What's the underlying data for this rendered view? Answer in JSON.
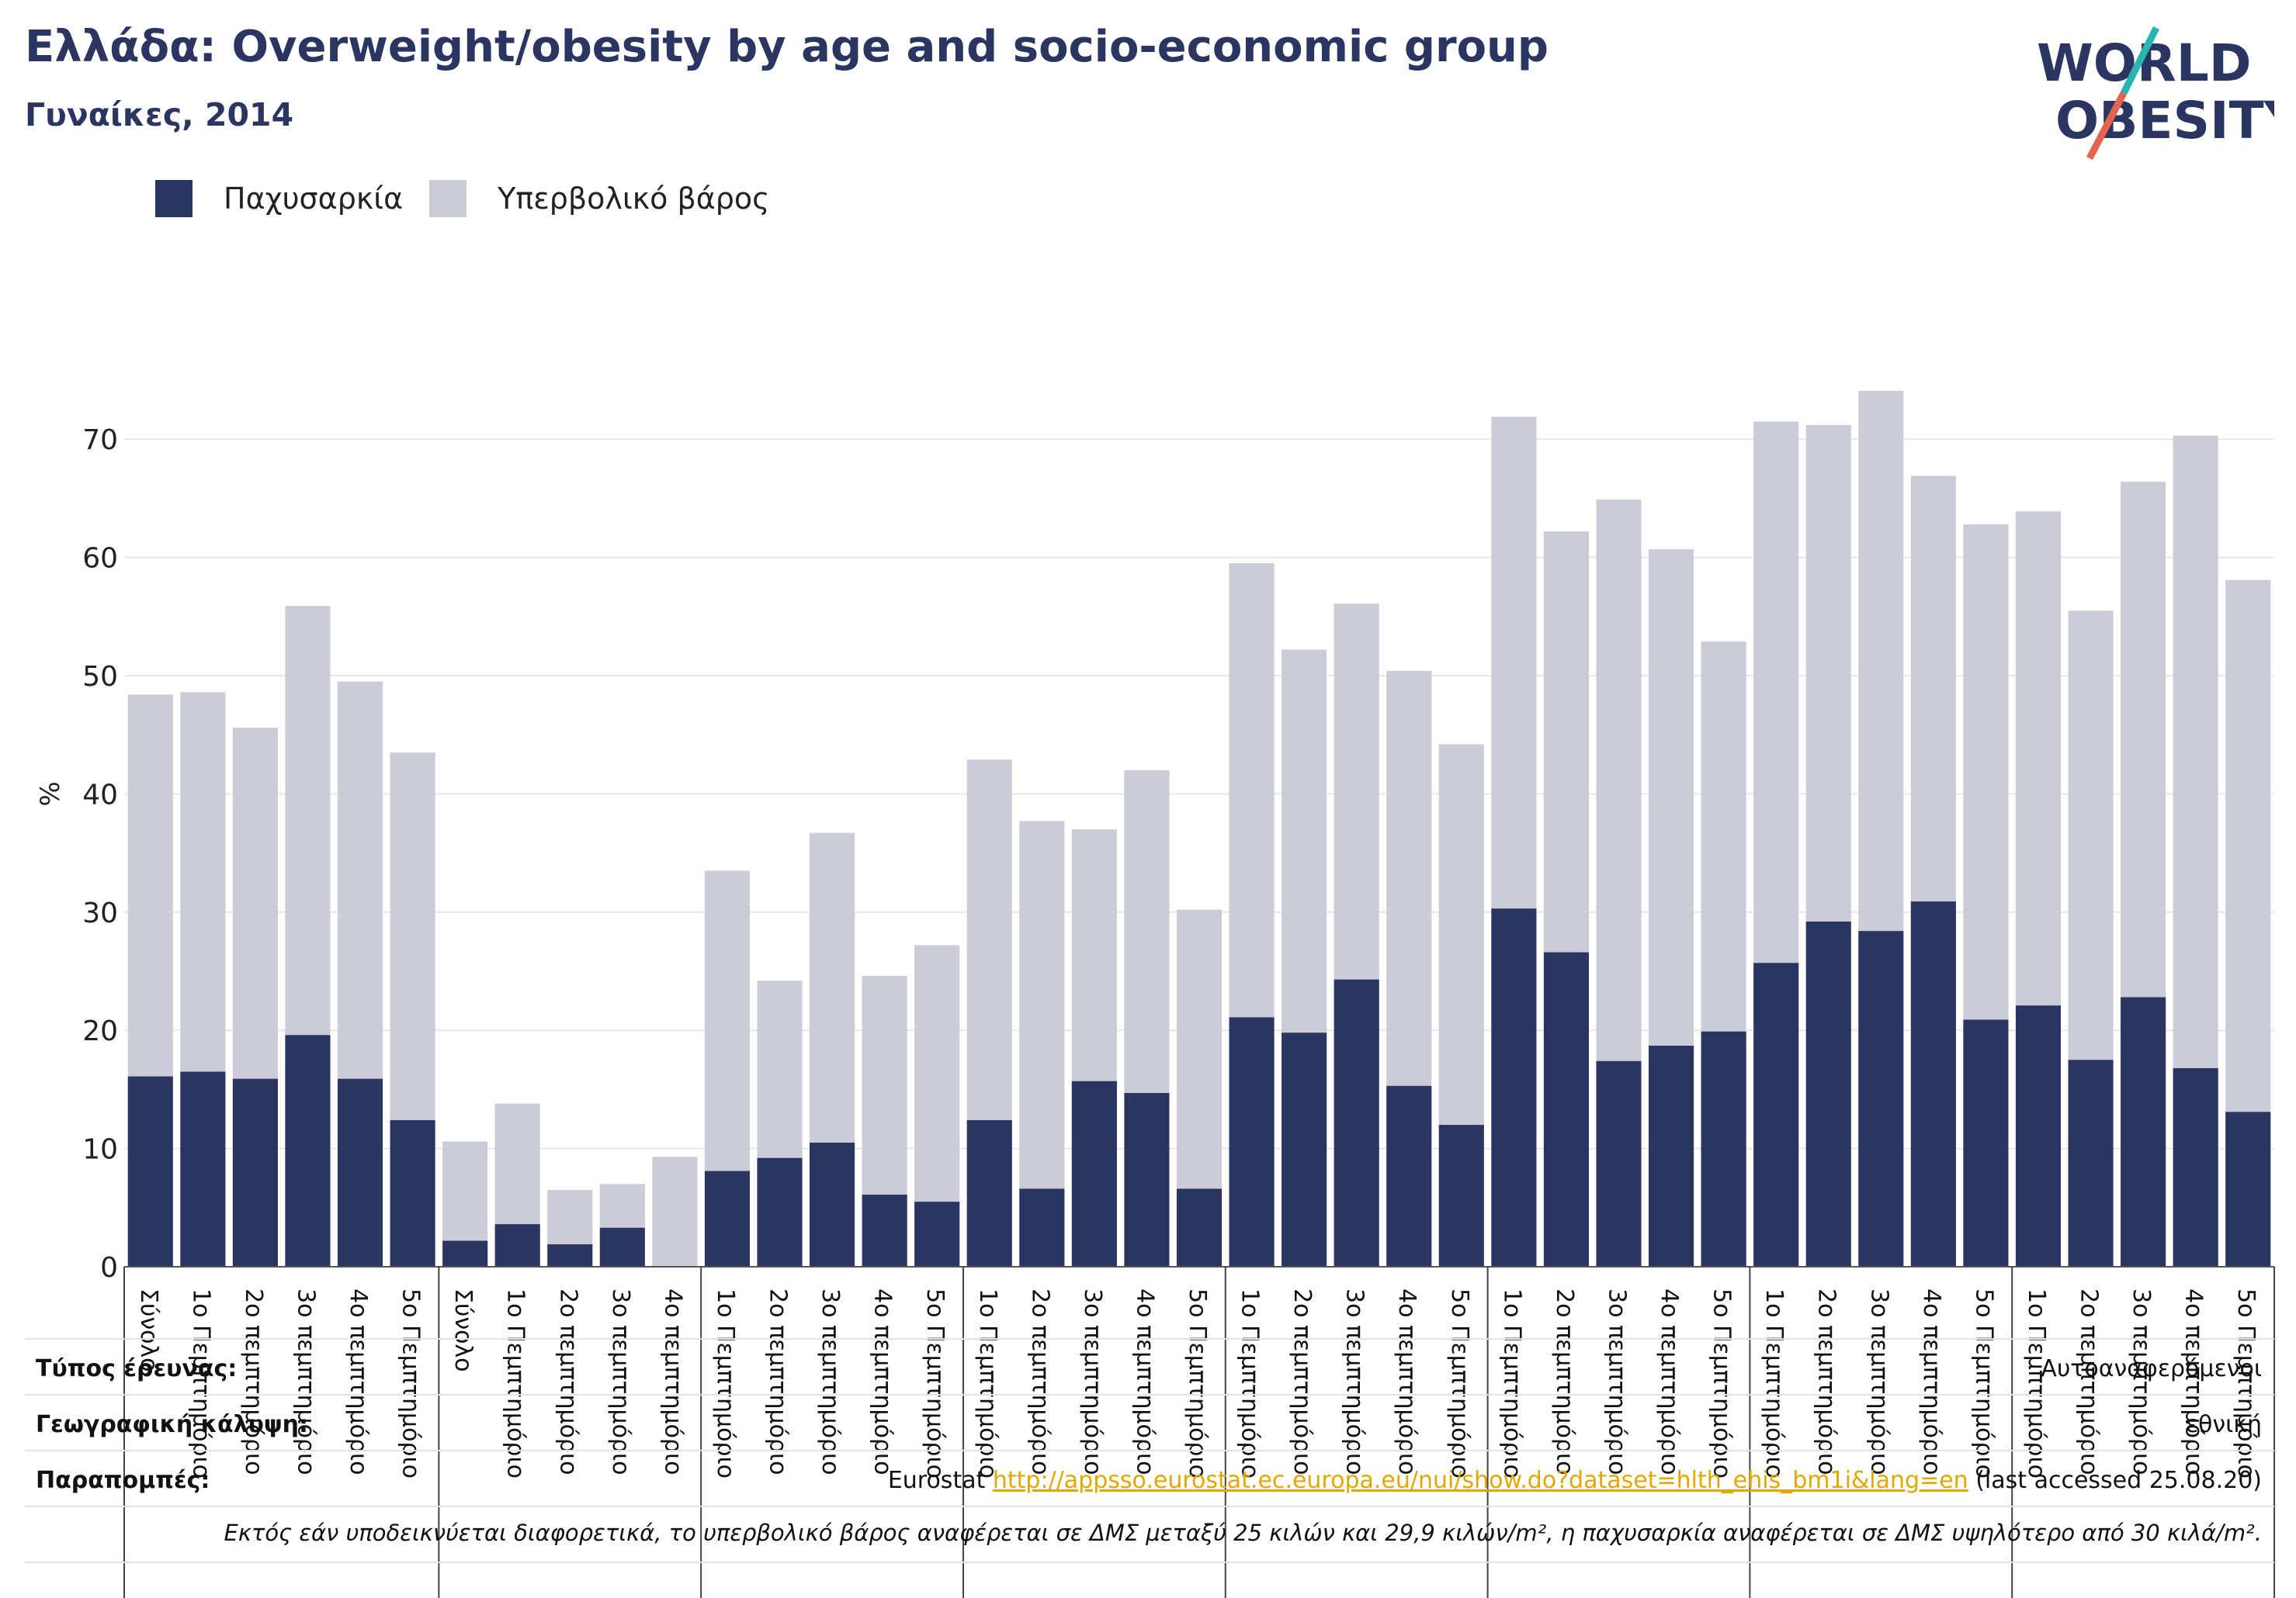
{
  "header": {
    "title": "Ελλάδα: Overweight/obesity by age and socio-economic group",
    "subtitle": "Γυναίκες, 2014"
  },
  "logo": {
    "line1": "WORLD",
    "line2": "OBESITY",
    "colors": {
      "text": "#2b3561",
      "slash_top": "#2bb5b0",
      "slash_bottom": "#e5634f"
    }
  },
  "legend": [
    {
      "label": "Παχυσαρκία",
      "color": "#2b3561"
    },
    {
      "label": "Υπερβολικό βάρος",
      "color": "#cbccd8"
    }
  ],
  "chart_data": {
    "type": "bar",
    "stacked": false,
    "ylabel": "%",
    "ylim": [
      0,
      75
    ],
    "yticks": [
      0,
      10,
      20,
      30,
      40,
      50,
      60,
      70
    ],
    "grid": true,
    "legend_position": "top-left",
    "categories": [
      "Σύνολο",
      "1ο Πεμπτημόριο",
      "2ο πεμπτημόριο",
      "3ο πεμπτημόριο",
      "4ο πεμπτημόριο",
      "5ο Πεμπτημόριο",
      "Σύνολο",
      "1ο Πεμπτημόριο",
      "2ο πεμπτημόριο",
      "3ο πεμπτημόριο",
      "4ο πεμπτημόριο",
      "1ο Πεμπτημόριο",
      "2ο πεμπτημόριο",
      "3ο πεμπτημόριο",
      "4ο πεμπτημόριο",
      "5ο Πεμπτημόριο",
      "1ο Πεμπτημόριο",
      "2ο πεμπτημόριο",
      "3ο πεμπτημόριο",
      "4ο πεμπτημόριο",
      "5ο Πεμπτημόριο",
      "1ο Πεμπτημόριο",
      "2ο πεμπτημόριο",
      "3ο πεμπτημόριο",
      "4ο πεμπτημόριο",
      "5ο Πεμπτημόριο",
      "1ο Πεμπτημόριο",
      "2ο πεμπτημόριο",
      "3ο πεμπτημόριο",
      "4ο πεμπτημόριο",
      "5ο Πεμπτημόριο",
      "1ο Πεμπτημόριο",
      "2ο πεμπτημόριο",
      "3ο πεμπτημόριο",
      "4ο πεμπτημόριο",
      "5ο Πεμπτημόριο",
      "1ο Πεμπτημόριο",
      "2ο πεμπτημόριο",
      "3ο πεμπτημόριο",
      "4ο πεμπτημόριο",
      "5ο Πεμπτημόριο"
    ],
    "groups": [
      6,
      5,
      5,
      5,
      5,
      5,
      5,
      5
    ],
    "series": [
      {
        "name": "Υπερβολικό βάρος",
        "color": "#cbccd8",
        "values": [
          48.4,
          48.6,
          45.6,
          55.9,
          49.5,
          43.5,
          10.6,
          13.8,
          6.5,
          7.0,
          9.3,
          33.5,
          24.2,
          36.7,
          24.6,
          27.2,
          42.9,
          37.7,
          37.0,
          42.0,
          30.2,
          59.5,
          52.2,
          56.1,
          50.4,
          44.2,
          71.9,
          62.2,
          64.9,
          60.7,
          52.9,
          71.5,
          71.2,
          74.1,
          66.9,
          62.8,
          63.9,
          55.5,
          66.4,
          70.3,
          58.1
        ]
      },
      {
        "name": "Παχυσαρκία",
        "color": "#2b3561",
        "values": [
          16.1,
          16.5,
          15.9,
          19.6,
          15.9,
          12.4,
          2.2,
          3.6,
          1.9,
          3.3,
          0,
          8.1,
          9.2,
          10.5,
          6.1,
          5.5,
          12.4,
          6.6,
          15.7,
          14.7,
          6.6,
          21.1,
          19.8,
          24.3,
          15.3,
          12.0,
          30.3,
          26.6,
          17.4,
          18.7,
          19.9,
          25.7,
          29.2,
          28.4,
          30.9,
          20.9,
          22.1,
          17.5,
          22.8,
          16.8,
          13.1
        ]
      }
    ]
  },
  "table": {
    "survey_type_label": "Τύπος έρευνας:",
    "survey_type_value": "Αυτοαναφερόμενοι",
    "coverage_label": "Γεωγραφική κάλυψη:",
    "coverage_value": "εθνική",
    "refs_label": "Παραπομπές:",
    "refs_source": "Eurostat",
    "refs_url": "http://appsso.eurostat.ec.europa.eu/nui/show.do?dataset=hlth_ehis_bm1i&lang=en",
    "refs_accessed": "(last accessed 25.08.20)",
    "note": "Εκτός εάν υποδεικνύεται διαφορετικά, το υπερβολικό βάρος αναφέρεται σε ΔΜΣ μεταξύ 25 κιλών και 29,9 κιλών/m², η παχυσαρκία αναφέρεται σε ΔΜΣ υψηλότερο από 30 κιλά/m²."
  }
}
